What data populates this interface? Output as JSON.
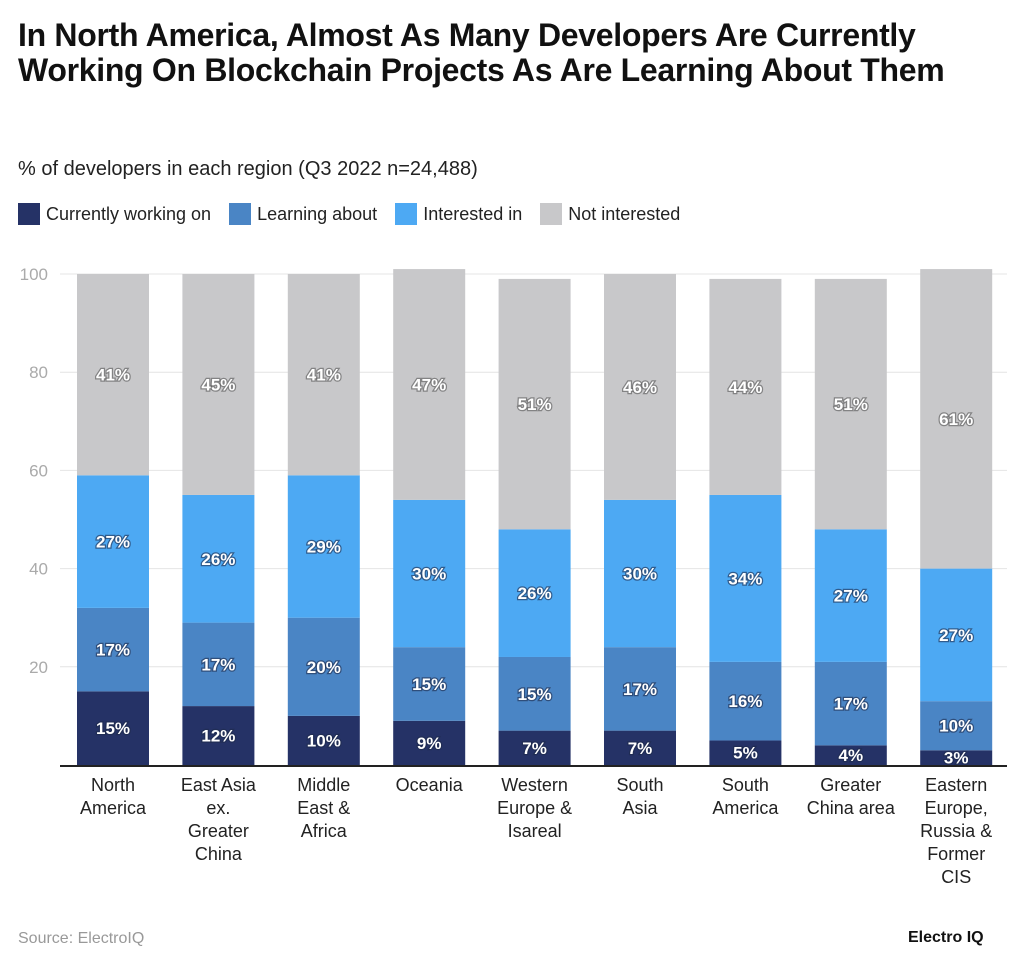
{
  "chart_data": {
    "type": "bar",
    "stacked": true,
    "title": "In North America, Almost As Many Developers Are Currently Working On Blockchain Projects As Are Learning About Them",
    "subtitle": "% of developers in each region (Q3 2022 n=24,488)",
    "categories": [
      [
        "North",
        "America"
      ],
      [
        "East Asia",
        "ex.",
        "Greater",
        "China"
      ],
      [
        "Middle",
        "East &",
        "Africa"
      ],
      [
        "Oceania"
      ],
      [
        "Western",
        "Europe &",
        "Isareal"
      ],
      [
        "South",
        "Asia"
      ],
      [
        "South",
        "America"
      ],
      [
        "Greater",
        "China area"
      ],
      [
        "Eastern",
        "Europe,",
        "Russia &",
        "Former",
        "CIS"
      ]
    ],
    "series": [
      {
        "name": "Currently working on",
        "color": "#253266",
        "values": [
          15,
          12,
          10,
          9,
          7,
          7,
          5,
          4,
          3
        ]
      },
      {
        "name": "Learning about",
        "color": "#4a85c5",
        "values": [
          17,
          17,
          20,
          15,
          15,
          17,
          16,
          17,
          10
        ]
      },
      {
        "name": "Interested in",
        "color": "#4da9f3",
        "values": [
          27,
          26,
          29,
          30,
          26,
          30,
          34,
          27,
          27
        ]
      },
      {
        "name": "Not interested",
        "color": "#c8c8ca",
        "values": [
          41,
          45,
          41,
          47,
          51,
          46,
          44,
          51,
          61
        ]
      }
    ],
    "ylim": [
      0,
      100
    ],
    "yticks": [
      20,
      40,
      60,
      80,
      100
    ],
    "value_suffix": "%",
    "grid": true,
    "legend_placement": "top-left"
  },
  "source": "Source: ElectroIQ",
  "logo": "Electro IQ"
}
